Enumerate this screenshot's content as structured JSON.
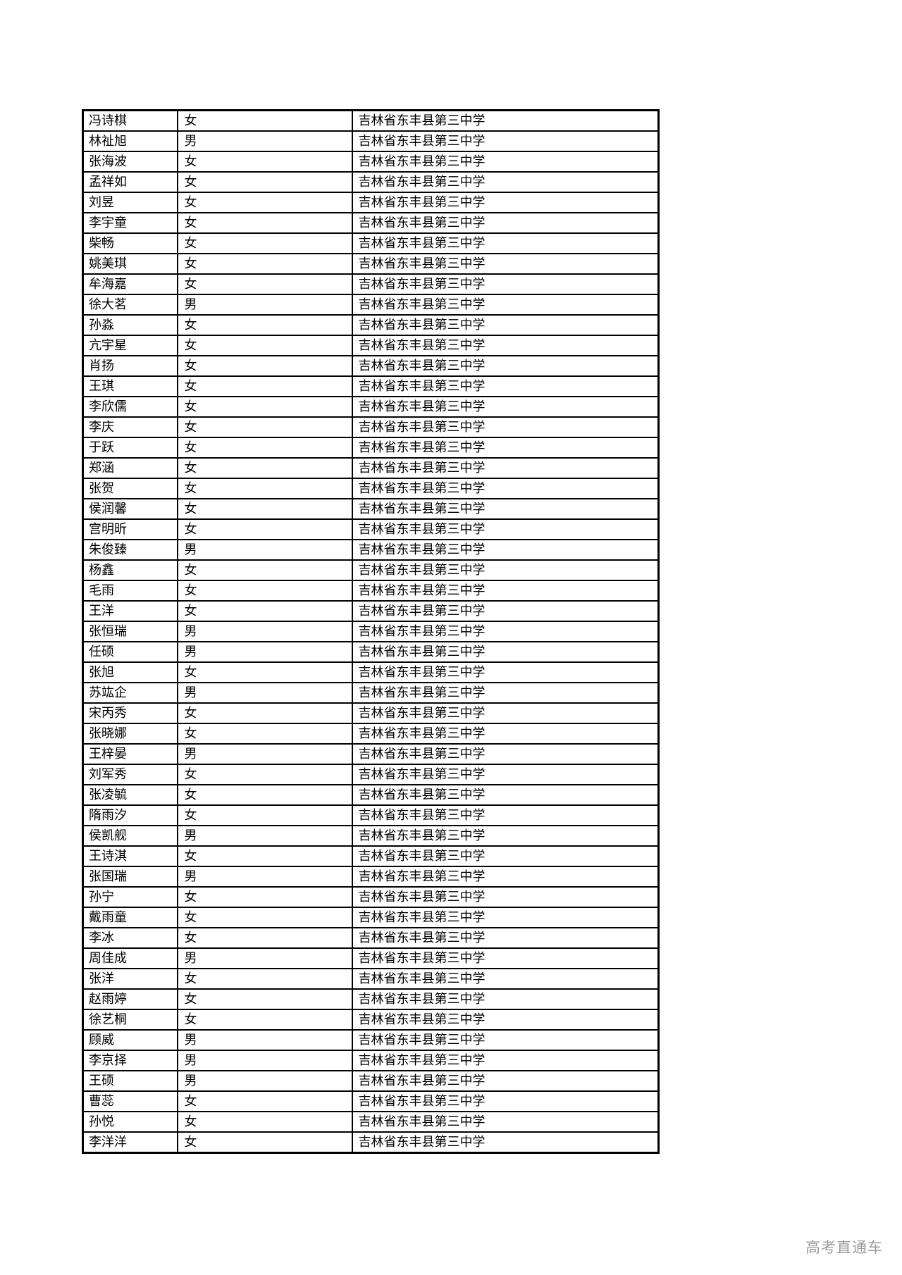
{
  "colors": {
    "background": "#ffffff",
    "border": "#000000",
    "text": "#000000",
    "watermark": "#9b9b9b"
  },
  "watermark": {
    "text": "高考直通车"
  },
  "table": {
    "rows": [
      {
        "name": "冯诗棋",
        "gender": "女",
        "school": "吉林省东丰县第三中学"
      },
      {
        "name": "林祉旭",
        "gender": "男",
        "school": "吉林省东丰县第三中学"
      },
      {
        "name": "张海波",
        "gender": "女",
        "school": "吉林省东丰县第三中学"
      },
      {
        "name": "孟祥如",
        "gender": "女",
        "school": "吉林省东丰县第三中学"
      },
      {
        "name": "刘昱",
        "gender": "女",
        "school": "吉林省东丰县第三中学"
      },
      {
        "name": "李宇童",
        "gender": "女",
        "school": "吉林省东丰县第三中学"
      },
      {
        "name": "柴畅",
        "gender": "女",
        "school": "吉林省东丰县第三中学"
      },
      {
        "name": "姚美琪",
        "gender": "女",
        "school": "吉林省东丰县第三中学"
      },
      {
        "name": "牟海嘉",
        "gender": "女",
        "school": "吉林省东丰县第三中学"
      },
      {
        "name": "徐大茗",
        "gender": "男",
        "school": "吉林省东丰县第三中学"
      },
      {
        "name": "孙淼",
        "gender": "女",
        "school": "吉林省东丰县第三中学"
      },
      {
        "name": "亢宇星",
        "gender": "女",
        "school": "吉林省东丰县第三中学"
      },
      {
        "name": "肖扬",
        "gender": "女",
        "school": "吉林省东丰县第三中学"
      },
      {
        "name": "王琪",
        "gender": "女",
        "school": "吉林省东丰县第三中学"
      },
      {
        "name": "李欣儒",
        "gender": "女",
        "school": "吉林省东丰县第三中学"
      },
      {
        "name": "李庆",
        "gender": "女",
        "school": "吉林省东丰县第三中学"
      },
      {
        "name": "于跃",
        "gender": "女",
        "school": "吉林省东丰县第三中学"
      },
      {
        "name": "郑涵",
        "gender": "女",
        "school": "吉林省东丰县第三中学"
      },
      {
        "name": "张贺",
        "gender": "女",
        "school": "吉林省东丰县第三中学"
      },
      {
        "name": "侯润馨",
        "gender": "女",
        "school": "吉林省东丰县第三中学"
      },
      {
        "name": "宫明昕",
        "gender": "女",
        "school": "吉林省东丰县第三中学"
      },
      {
        "name": "朱俊臻",
        "gender": "男",
        "school": "吉林省东丰县第三中学"
      },
      {
        "name": "杨鑫",
        "gender": "女",
        "school": "吉林省东丰县第三中学"
      },
      {
        "name": "毛雨",
        "gender": "女",
        "school": "吉林省东丰县第三中学"
      },
      {
        "name": "王洋",
        "gender": "女",
        "school": "吉林省东丰县第三中学"
      },
      {
        "name": "张恒瑞",
        "gender": "男",
        "school": "吉林省东丰县第三中学"
      },
      {
        "name": "任硕",
        "gender": "男",
        "school": "吉林省东丰县第三中学"
      },
      {
        "name": "张旭",
        "gender": "女",
        "school": "吉林省东丰县第三中学"
      },
      {
        "name": "苏竑企",
        "gender": "男",
        "school": "吉林省东丰县第三中学"
      },
      {
        "name": "宋丙秀",
        "gender": "女",
        "school": "吉林省东丰县第三中学"
      },
      {
        "name": "张晓娜",
        "gender": "女",
        "school": "吉林省东丰县第三中学"
      },
      {
        "name": "王梓晏",
        "gender": "男",
        "school": "吉林省东丰县第三中学"
      },
      {
        "name": "刘军秀",
        "gender": "女",
        "school": "吉林省东丰县第三中学"
      },
      {
        "name": "张凌毓",
        "gender": "女",
        "school": "吉林省东丰县第三中学"
      },
      {
        "name": "隋雨汐",
        "gender": "女",
        "school": "吉林省东丰县第三中学"
      },
      {
        "name": "侯凯舰",
        "gender": "男",
        "school": "吉林省东丰县第三中学"
      },
      {
        "name": "王诗淇",
        "gender": "女",
        "school": "吉林省东丰县第三中学"
      },
      {
        "name": "张国瑞",
        "gender": "男",
        "school": "吉林省东丰县第三中学"
      },
      {
        "name": "孙宁",
        "gender": "女",
        "school": "吉林省东丰县第三中学"
      },
      {
        "name": "戴雨童",
        "gender": "女",
        "school": "吉林省东丰县第三中学"
      },
      {
        "name": "李冰",
        "gender": "女",
        "school": "吉林省东丰县第三中学"
      },
      {
        "name": "周佳成",
        "gender": "男",
        "school": "吉林省东丰县第三中学"
      },
      {
        "name": "张洋",
        "gender": "女",
        "school": "吉林省东丰县第三中学"
      },
      {
        "name": "赵雨婷",
        "gender": "女",
        "school": "吉林省东丰县第三中学"
      },
      {
        "name": "徐艺桐",
        "gender": "女",
        "school": "吉林省东丰县第三中学"
      },
      {
        "name": "顾威",
        "gender": "男",
        "school": "吉林省东丰县第三中学"
      },
      {
        "name": "李京择",
        "gender": "男",
        "school": "吉林省东丰县第三中学"
      },
      {
        "name": "王硕",
        "gender": "男",
        "school": "吉林省东丰县第三中学"
      },
      {
        "name": "曹蕊",
        "gender": "女",
        "school": "吉林省东丰县第三中学"
      },
      {
        "name": "孙悦",
        "gender": "女",
        "school": "吉林省东丰县第三中学"
      },
      {
        "name": "李洋洋",
        "gender": "女",
        "school": "吉林省东丰县第三中学"
      }
    ]
  }
}
